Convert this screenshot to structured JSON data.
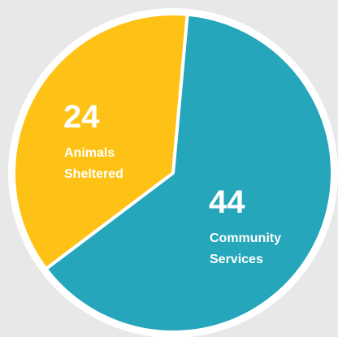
{
  "chart_data": {
    "type": "pie",
    "slices": [
      {
        "value": 44,
        "label_lines": [
          "Community",
          "Services"
        ],
        "color": "#25a6ba"
      },
      {
        "value": 24,
        "label_lines": [
          "Animals",
          "Sheltered"
        ],
        "color": "#fdc215"
      }
    ],
    "start": "top, clockwise",
    "legend": "none",
    "separator_color": "#ffffff",
    "background_color": "#e8e8e8"
  }
}
